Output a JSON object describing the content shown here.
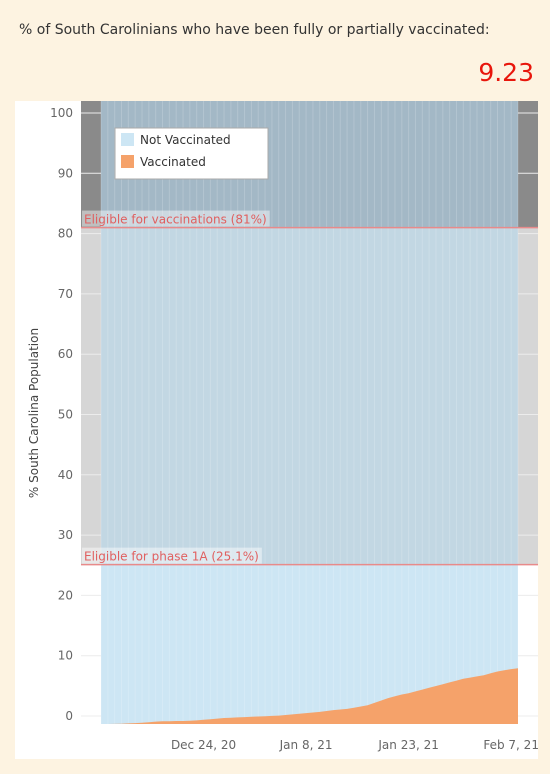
{
  "header": {
    "title": "% of South Carolinians who have been fully or partially vaccinated:",
    "value": "9.23"
  },
  "chart_data": {
    "type": "area",
    "ylabel": "% South Carolina Population",
    "ylim": [
      0,
      100
    ],
    "yticks": [
      0,
      10,
      20,
      30,
      40,
      50,
      60,
      70,
      80,
      90,
      100
    ],
    "xticks": [
      "Dec 24, 20",
      "Jan 8, 21",
      "Jan 23, 21",
      "Feb 7, 21"
    ],
    "xtick_days": [
      15,
      30,
      45,
      60
    ],
    "x_start": "Dec 9, 20",
    "x_end": "Feb 8, 21",
    "legend": {
      "position": "top-left",
      "items": [
        {
          "label": "Not Vaccinated",
          "color": "#cde6f4"
        },
        {
          "label": "Vaccinated",
          "color": "#f5a26a"
        }
      ]
    },
    "reference_lines": [
      {
        "label": "Eligible for vaccinations (81%)",
        "value": 81
      },
      {
        "label": "Eligible for phase 1A (25.1%)",
        "value": 25.1
      }
    ],
    "series": [
      {
        "name": "Vaccinated",
        "values": [
          0,
          0,
          0.02,
          0.05,
          0.1,
          0.15,
          0.2,
          0.3,
          0.4,
          0.45,
          0.45,
          0.5,
          0.5,
          0.55,
          0.6,
          0.7,
          0.8,
          0.9,
          1.0,
          1.05,
          1.1,
          1.15,
          1.2,
          1.25,
          1.3,
          1.35,
          1.4,
          1.5,
          1.6,
          1.7,
          1.8,
          1.9,
          2.0,
          2.15,
          2.3,
          2.4,
          2.5,
          2.7,
          2.9,
          3.1,
          3.5,
          3.9,
          4.3,
          4.6,
          4.9,
          5.1,
          5.4,
          5.7,
          6.0,
          6.3,
          6.6,
          6.9,
          7.2,
          7.5,
          7.7,
          7.9,
          8.1,
          8.4,
          8.7,
          8.9,
          9.1,
          9.23
        ]
      },
      {
        "name": "Not Vaccinated",
        "values": "100 - Vaccinated"
      }
    ]
  }
}
